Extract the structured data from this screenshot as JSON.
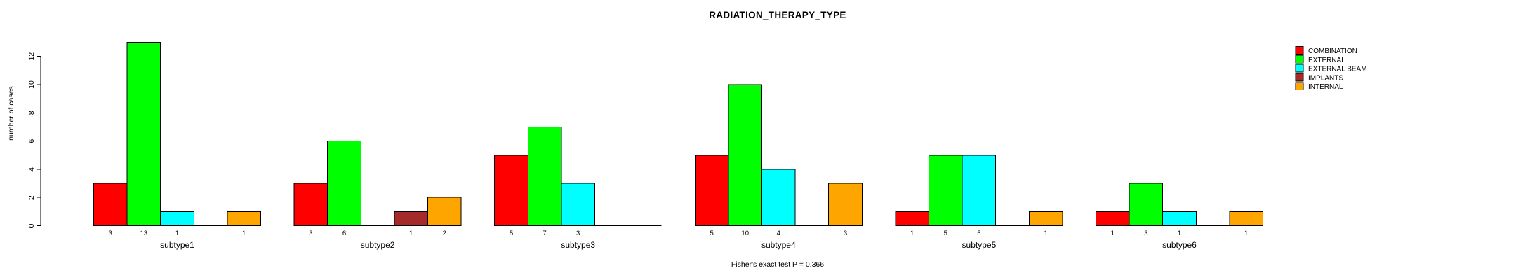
{
  "chart_data": {
    "type": "bar",
    "title": "RADIATION_THERAPY_TYPE",
    "ylabel": "number of cases",
    "xlabel": "",
    "annotation": "Fisher's exact test P = 0.366",
    "categories": [
      "subtype1",
      "subtype2",
      "subtype3",
      "subtype4",
      "subtype5",
      "subtype6"
    ],
    "series": [
      {
        "name": "COMBINATION",
        "color": "#FF0000",
        "values": [
          3,
          3,
          5,
          5,
          1,
          1
        ]
      },
      {
        "name": "EXTERNAL",
        "color": "#00FF00",
        "values": [
          13,
          6,
          7,
          10,
          5,
          3
        ]
      },
      {
        "name": "EXTERNAL BEAM",
        "color": "#00FFFF",
        "values": [
          1,
          0,
          3,
          4,
          5,
          1
        ]
      },
      {
        "name": "IMPLANTS",
        "color": "#A52A2A",
        "values": [
          0,
          1,
          0,
          0,
          0,
          0
        ]
      },
      {
        "name": "INTERNAL",
        "color": "#FFA500",
        "values": [
          1,
          2,
          0,
          3,
          1,
          1
        ]
      }
    ],
    "y_ticks": [
      0,
      2,
      4,
      6,
      8,
      10,
      12
    ],
    "ylim": [
      0,
      13
    ],
    "grid": false,
    "bar_value_labels_shown": true,
    "legend_position": "right",
    "axis_color": "#000000",
    "bar_border_color": "#000000"
  }
}
